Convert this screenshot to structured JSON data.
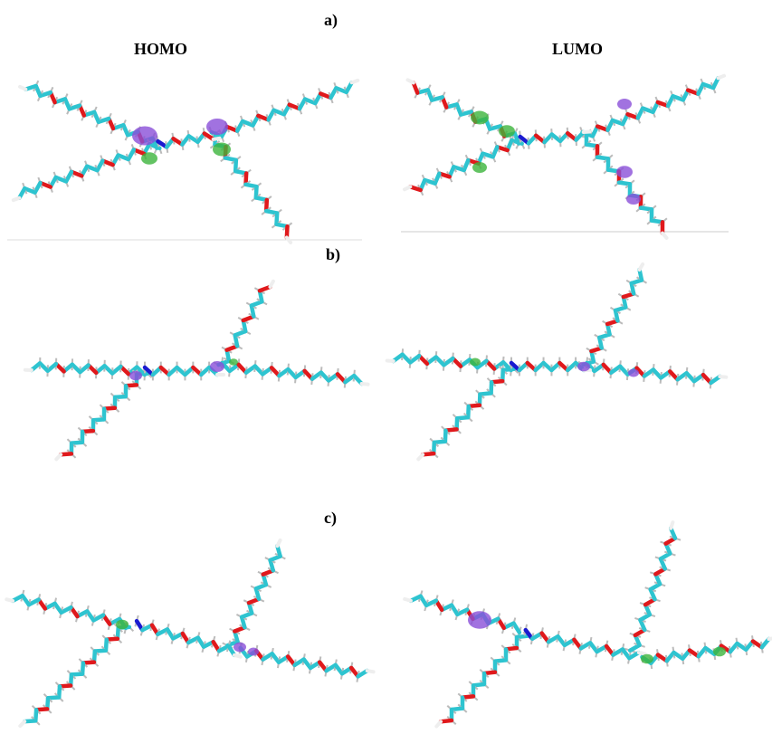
{
  "columns": [
    "HOMO",
    "LUMO"
  ],
  "panels": [
    {
      "label": "a)"
    },
    {
      "label": "b)"
    },
    {
      "label": "c)"
    }
  ]
}
